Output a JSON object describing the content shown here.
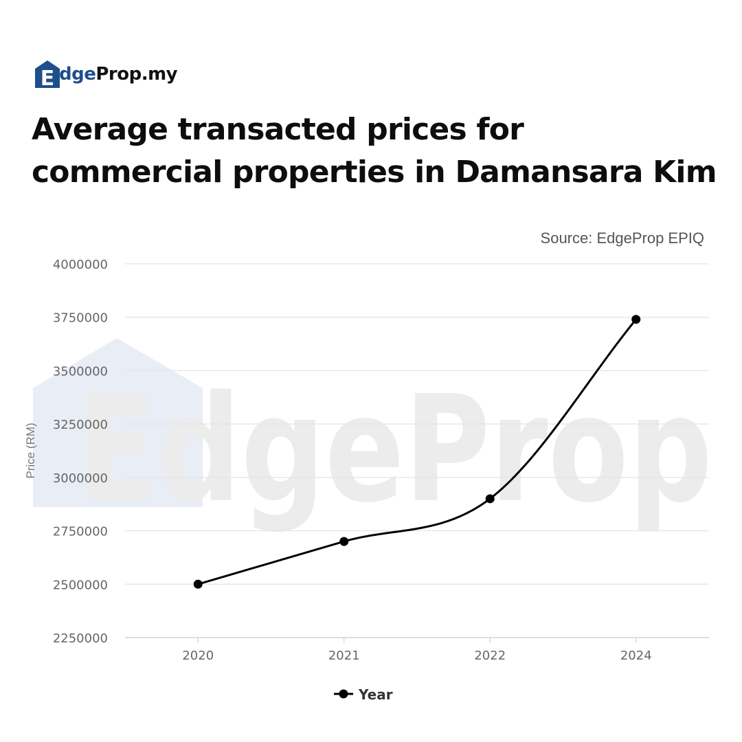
{
  "brand": {
    "logo_e": "E",
    "logo_dge": "dge",
    "logo_prop": "Prop.my",
    "watermark": "EdgeProp",
    "colors": {
      "brand_blue": "#1f4e8c",
      "watermark_blue": "#e9edf5",
      "watermark_grey": "#ececec"
    }
  },
  "title": {
    "line1": "Average transacted prices for",
    "line2": "commercial properties in Damansara Kim"
  },
  "source": "Source: EdgeProp EPIQ",
  "chart_data": {
    "type": "line",
    "categories": [
      "2020",
      "2021",
      "2022",
      "2024"
    ],
    "series": [
      {
        "name": "Year",
        "values": [
          2500000,
          2700000,
          2900000,
          3740000
        ],
        "color": "#000000"
      }
    ],
    "ylabel": "Price (RM)",
    "xlabel": "",
    "ylim": [
      2250000,
      4000000
    ],
    "yticks": [
      2250000,
      2500000,
      2750000,
      3000000,
      3250000,
      3500000,
      3750000,
      4000000
    ],
    "smooth": true,
    "grid": true,
    "legend": "bottom-center"
  }
}
